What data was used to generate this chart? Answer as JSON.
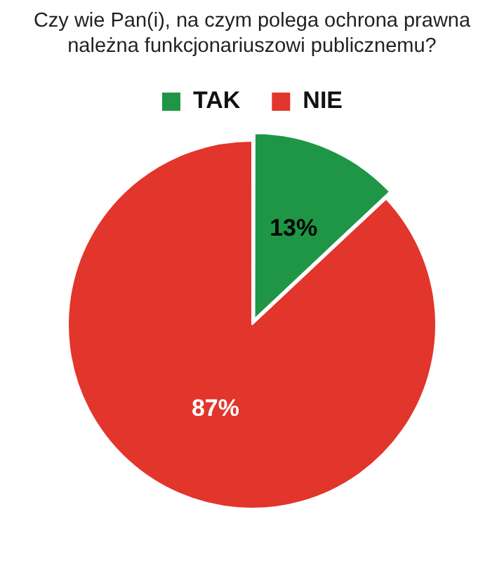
{
  "chart_data": {
    "type": "pie",
    "title": "Czy wie Pan(i), na czym polega ochrona prawna należna funkcjonariuszowi publicznemu?",
    "categories": [
      "TAK",
      "NIE"
    ],
    "values": [
      13,
      87
    ],
    "colors": [
      "#1e9645",
      "#e2352b"
    ],
    "legend": "top",
    "value_labels": [
      "13%",
      "87%"
    ]
  }
}
